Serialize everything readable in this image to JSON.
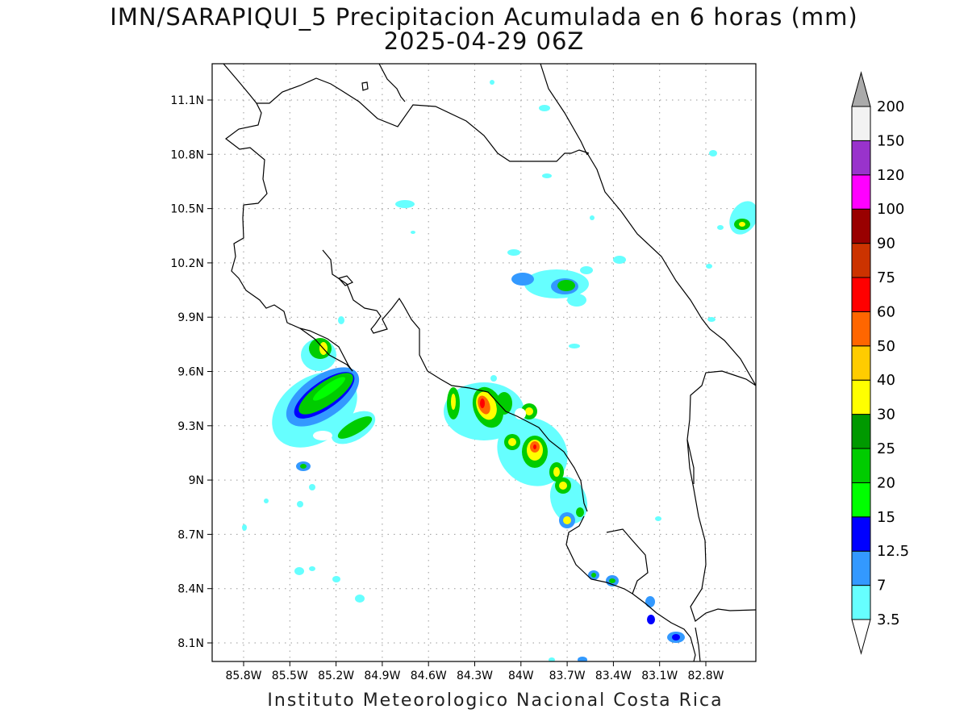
{
  "title": {
    "line1": "IMN/SARAPIQUI_5 Precipitacion Acumulada en 6 horas (mm)",
    "line2": "2025-04-29 06Z"
  },
  "footer": "Instituto Meteorologico Nacional Costa Rica",
  "map": {
    "lat_labels": [
      "11.1N",
      "10.8N",
      "10.5N",
      "10.2N",
      "9.9N",
      "9.6N",
      "9.3N",
      "9N",
      "8.7N",
      "8.4N",
      "8.1N"
    ],
    "lon_labels": [
      "85.8W",
      "85.5W",
      "85.2W",
      "84.9W",
      "84.6W",
      "84.3W",
      "84W",
      "83.7W",
      "83.4W",
      "83.1W",
      "82.8W"
    ],
    "grid": true
  },
  "colorbar": {
    "levels": [
      "3.5",
      "7",
      "12.5",
      "15",
      "20",
      "25",
      "30",
      "40",
      "50",
      "60",
      "75",
      "90",
      "100",
      "120",
      "150",
      "200"
    ],
    "colors": [
      "#66ffff",
      "#3399ff",
      "#0000ff",
      "#00ff00",
      "#00cc00",
      "#009900",
      "#ffff00",
      "#ffcc00",
      "#ff6600",
      "#ff0000",
      "#cc3300",
      "#990000",
      "#ff00ff",
      "#9933cc",
      "#f2f2f2",
      "#aaaaaa"
    ],
    "overflow_color": "#aaaaaa",
    "underflow_color": "#ffffff"
  }
}
